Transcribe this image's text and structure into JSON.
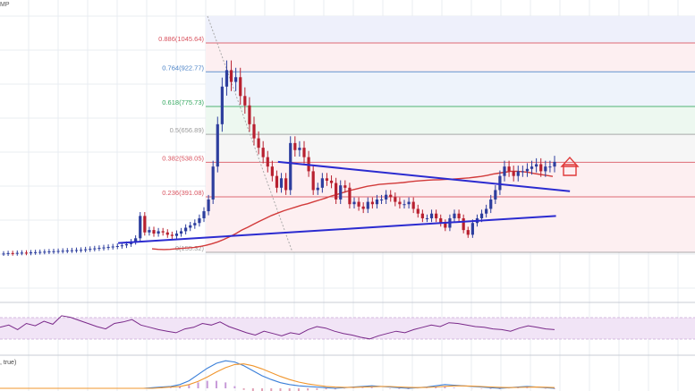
{
  "header": {
    "symbol_fragment": "MP"
  },
  "macd_label": ", true)",
  "colors": {
    "up_candle": "#2d3e9e",
    "down_candle": "#b8202f",
    "ma_line": "#d23a3a",
    "trend_line": "#2b2bd0",
    "rsi_line": "#7a2a8a",
    "rsi_band": "#f1e4f6",
    "macd_line": "#3a7fd9",
    "signal_line": "#f0962e",
    "fib_red": "#d9535f",
    "fib_blue": "#4a82c6",
    "fib_green": "#35a860",
    "arrow": "#e03a3a"
  },
  "chart_data": {
    "type": "candlestick",
    "fib_levels": [
      {
        "ratio": "0.886",
        "price": "1045.64",
        "color": "red"
      },
      {
        "ratio": "0.764",
        "price": "922.77",
        "color": "blue"
      },
      {
        "ratio": "0.618",
        "price": "775.73",
        "color": "green"
      },
      {
        "ratio": "0.5",
        "price": "656.89",
        "color": "gray"
      },
      {
        "ratio": "0.382",
        "price": "538.05",
        "color": "red"
      },
      {
        "ratio": "0.236",
        "price": "391.08",
        "color": "red"
      },
      {
        "ratio": "0",
        "price": "155.32",
        "color": "gray"
      }
    ],
    "close_prices": [
      150,
      152,
      151,
      153,
      154,
      153,
      155,
      156,
      157,
      158,
      159,
      160,
      161,
      162,
      163,
      164,
      165,
      166,
      168,
      170,
      172,
      174,
      176,
      178,
      180,
      182,
      185,
      190,
      200,
      215,
      310,
      240,
      250,
      235,
      245,
      240,
      230,
      225,
      235,
      245,
      260,
      270,
      280,
      300,
      330,
      380,
      520,
      700,
      860,
      930,
      880,
      900,
      820,
      780,
      700,
      640,
      600,
      560,
      520,
      480,
      430,
      470,
      420,
      620,
      590,
      600,
      560,
      500,
      420,
      430,
      470,
      460,
      450,
      380,
      440,
      430,
      360,
      370,
      350,
      340,
      370,
      360,
      380,
      380,
      400,
      390,
      370,
      360,
      360,
      370,
      340,
      320,
      300,
      300,
      320,
      300,
      280,
      260,
      300,
      320,
      300,
      250,
      230,
      280,
      300,
      320,
      340,
      380,
      420,
      480,
      520,
      500,
      480,
      500,
      500,
      510,
      520,
      530,
      500,
      520,
      520,
      540
    ],
    "ma_values": [
      170,
      168,
      167,
      168,
      170,
      172,
      174,
      176,
      180,
      185,
      192,
      200,
      210,
      222,
      235,
      250,
      262,
      275,
      288,
      300,
      312,
      322,
      332,
      340,
      348,
      356,
      362,
      370,
      378,
      386,
      395,
      402,
      410,
      418,
      424,
      430,
      436,
      440,
      444,
      446,
      448,
      450,
      452,
      455,
      458,
      460,
      462,
      463,
      464,
      465,
      466,
      468,
      470,
      472,
      475,
      478,
      482,
      488,
      492,
      496,
      500,
      500,
      498,
      495,
      490,
      486,
      482,
      478
    ],
    "trendlines": {
      "descending": {
        "from": [
          0.4,
          540
        ],
        "to": [
          0.82,
          415
        ]
      },
      "ascending": {
        "from": [
          0.17,
          195
        ],
        "to": [
          0.8,
          310
        ]
      }
    },
    "rsi": [
      55,
      58,
      52,
      60,
      57,
      63,
      59,
      70,
      68,
      64,
      60,
      56,
      53,
      60,
      62,
      65,
      58,
      55,
      52,
      50,
      48,
      53,
      55,
      60,
      58,
      62,
      56,
      52,
      48,
      45,
      50,
      47,
      44,
      48,
      46,
      52,
      56,
      54,
      50,
      47,
      45,
      42,
      40,
      44,
      47,
      50,
      48,
      52,
      55,
      58,
      56,
      61,
      60,
      58,
      56,
      55,
      53,
      52,
      50,
      54,
      57,
      55,
      53,
      52
    ],
    "macd": [
      0,
      0,
      0.1,
      0.2,
      0.3,
      0.6,
      1.2,
      2.2,
      3.2,
      4.0,
      4.4,
      4.2,
      3.6,
      2.8,
      2.0,
      1.4,
      0.9,
      0.6,
      0.4,
      0.3,
      0.2,
      0.1,
      0,
      0.1,
      0.2,
      0.3,
      0.4,
      0.3,
      0.2,
      0.1,
      0,
      0.1,
      0.2,
      0.4,
      0.6,
      0.5,
      0.4,
      0.3,
      0.2,
      0.1,
      0,
      0.1,
      0.2,
      0.3,
      0.2,
      0.1,
      0
    ],
    "signal": [
      0,
      0,
      0,
      0.1,
      0.2,
      0.3,
      0.6,
      1.1,
      1.8,
      2.6,
      3.3,
      3.8,
      3.9,
      3.6,
      3.1,
      2.5,
      1.9,
      1.4,
      1.0,
      0.7,
      0.5,
      0.3,
      0.2,
      0.15,
      0.15,
      0.2,
      0.25,
      0.3,
      0.28,
      0.22,
      0.15,
      0.12,
      0.15,
      0.22,
      0.32,
      0.38,
      0.38,
      0.34,
      0.28,
      0.22,
      0.15,
      0.12,
      0.14,
      0.18,
      0.2,
      0.17,
      0.12
    ]
  }
}
